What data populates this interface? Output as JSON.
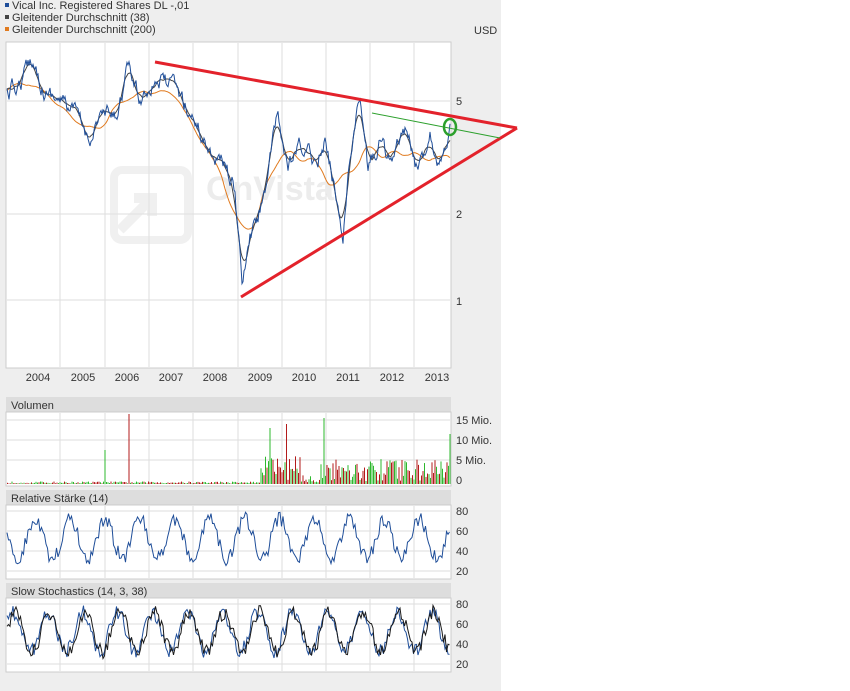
{
  "legend": [
    {
      "label": "Vical Inc. Registered Shares DL -,01",
      "color": "#1f4e99"
    },
    {
      "label": "Gleitender Durchschnitt (38)",
      "color": "#444444"
    },
    {
      "label": "Gleitender Durchschnitt (200)",
      "color": "#e07a1f"
    }
  ],
  "currency": "USD",
  "watermark": "OnVista",
  "chart_data": [
    {
      "type": "line",
      "name": "price",
      "x_tick_labels": [
        "2004",
        "2005",
        "2006",
        "2007",
        "2008",
        "2009",
        "2010",
        "2011",
        "2012",
        "2013"
      ],
      "y_tick_labels": [
        "5",
        "2",
        "1"
      ],
      "y_scale": "log",
      "grid": true,
      "series": [
        {
          "name": "Vical Inc. Registered Shares DL -,01",
          "color": "#1f4e99"
        },
        {
          "name": "Gleitender Durchschnitt (38)",
          "color": "#444444"
        },
        {
          "name": "Gleitender Durchschnitt (200)",
          "color": "#e07a1f"
        }
      ],
      "annotations": {
        "triangle_color": "#e3222b",
        "trend_color": "#2ca02c",
        "circle_color": "#2ca02c"
      }
    },
    {
      "type": "bar",
      "title": "Volumen",
      "y_tick_labels": [
        "15 Mio.",
        "10 Mio.",
        "5 Mio.",
        "0"
      ],
      "colors": {
        "up": "#2eb82e",
        "down": "#b31b1b"
      }
    },
    {
      "type": "line",
      "title": "Relative Stärke (14)",
      "y_tick_labels": [
        "80",
        "60",
        "40",
        "20"
      ],
      "series_color": "#1f4e99"
    },
    {
      "type": "line",
      "title": "Slow Stochastics (14, 3, 38)",
      "y_tick_labels": [
        "80",
        "60",
        "40",
        "20"
      ],
      "series_colors": [
        "#1f4e99",
        "#1a1a1a"
      ]
    }
  ]
}
